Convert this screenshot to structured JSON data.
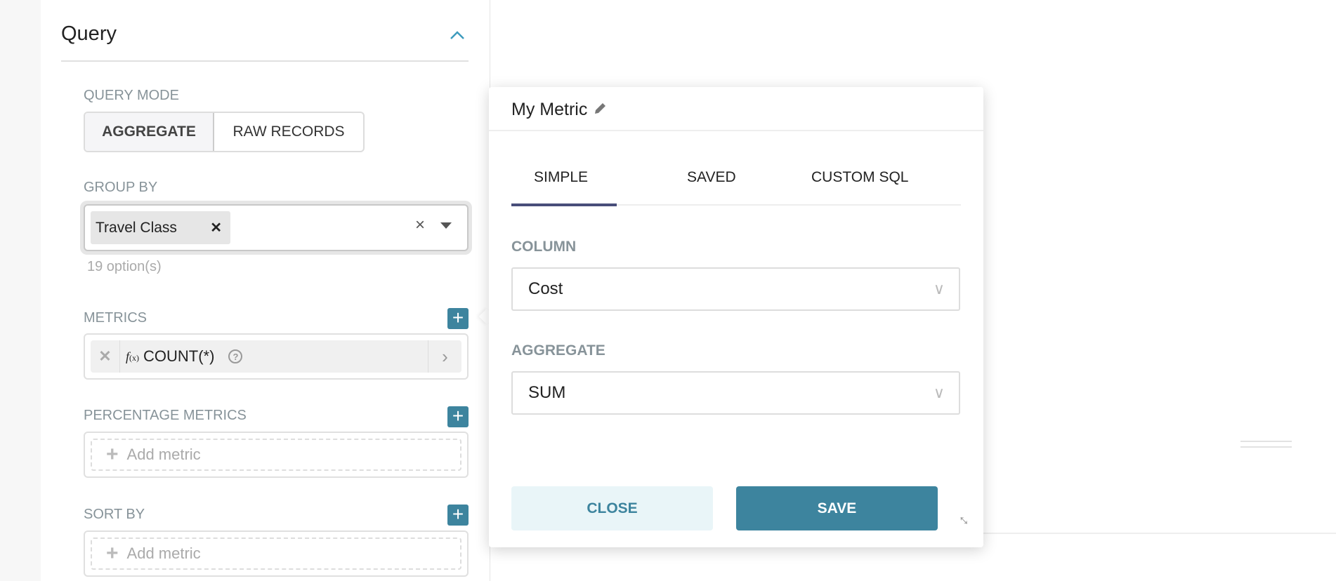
{
  "query_panel": {
    "title": "Query",
    "query_mode": {
      "label": "QUERY MODE",
      "options": [
        "AGGREGATE",
        "RAW RECORDS"
      ],
      "selected": "AGGREGATE"
    },
    "group_by": {
      "label": "GROUP BY",
      "tags": [
        "Travel Class"
      ],
      "hint": "19 option(s)"
    },
    "metrics": {
      "label": "METRICS",
      "items": [
        {
          "name": "COUNT(*)",
          "fx": "f",
          "fx_sub": "(x)"
        }
      ]
    },
    "percentage_metrics": {
      "label": "PERCENTAGE METRICS",
      "placeholder": "Add metric"
    },
    "sort_by": {
      "label": "SORT BY",
      "placeholder": "Add metric"
    }
  },
  "popover": {
    "title": "My Metric",
    "tabs": [
      "SIMPLE",
      "SAVED",
      "CUSTOM SQL"
    ],
    "active_tab": "SIMPLE",
    "column": {
      "label": "COLUMN",
      "value": "Cost"
    },
    "aggregate": {
      "label": "AGGREGATE",
      "value": "SUM"
    },
    "close_label": "CLOSE",
    "save_label": "SAVE"
  },
  "colors": {
    "accent": "#3d849e",
    "accent_light": "#e9f5f8",
    "tab_active": "#484e7a",
    "label": "#879399"
  }
}
